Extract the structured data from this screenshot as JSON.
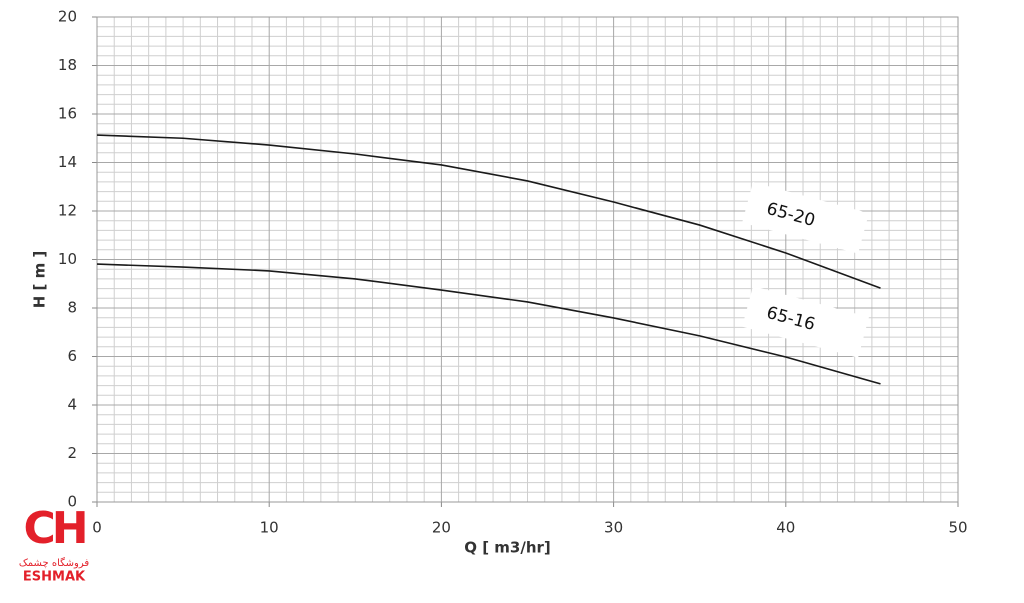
{
  "chart_data": {
    "type": "line",
    "xlabel": "Q [ m3/hr]",
    "ylabel": "H [ m ]",
    "x": [
      0,
      5,
      10,
      15,
      20,
      25,
      30,
      35,
      40,
      45.5
    ],
    "series": [
      {
        "name": "65-20",
        "color": "#1a1a1a",
        "values": [
          15.13,
          15.0,
          14.72,
          14.35,
          13.9,
          13.24,
          12.37,
          11.42,
          10.27,
          8.82
        ]
      },
      {
        "name": "65-16",
        "color": "#1a1a1a",
        "values": [
          9.81,
          9.69,
          9.53,
          9.2,
          8.74,
          8.25,
          7.59,
          6.85,
          5.98,
          4.87
        ]
      }
    ],
    "xlim": [
      0,
      50
    ],
    "xticks": [
      0,
      10,
      20,
      30,
      40,
      50
    ],
    "ylim": [
      0,
      20
    ],
    "yticks": [
      0,
      2,
      4,
      6,
      8,
      10,
      12,
      14,
      16,
      18,
      20
    ],
    "grid": true
  },
  "logo": {
    "mark": "CH",
    "subtitle": "فروشگاه چشمک",
    "name": "ESHMAK"
  }
}
